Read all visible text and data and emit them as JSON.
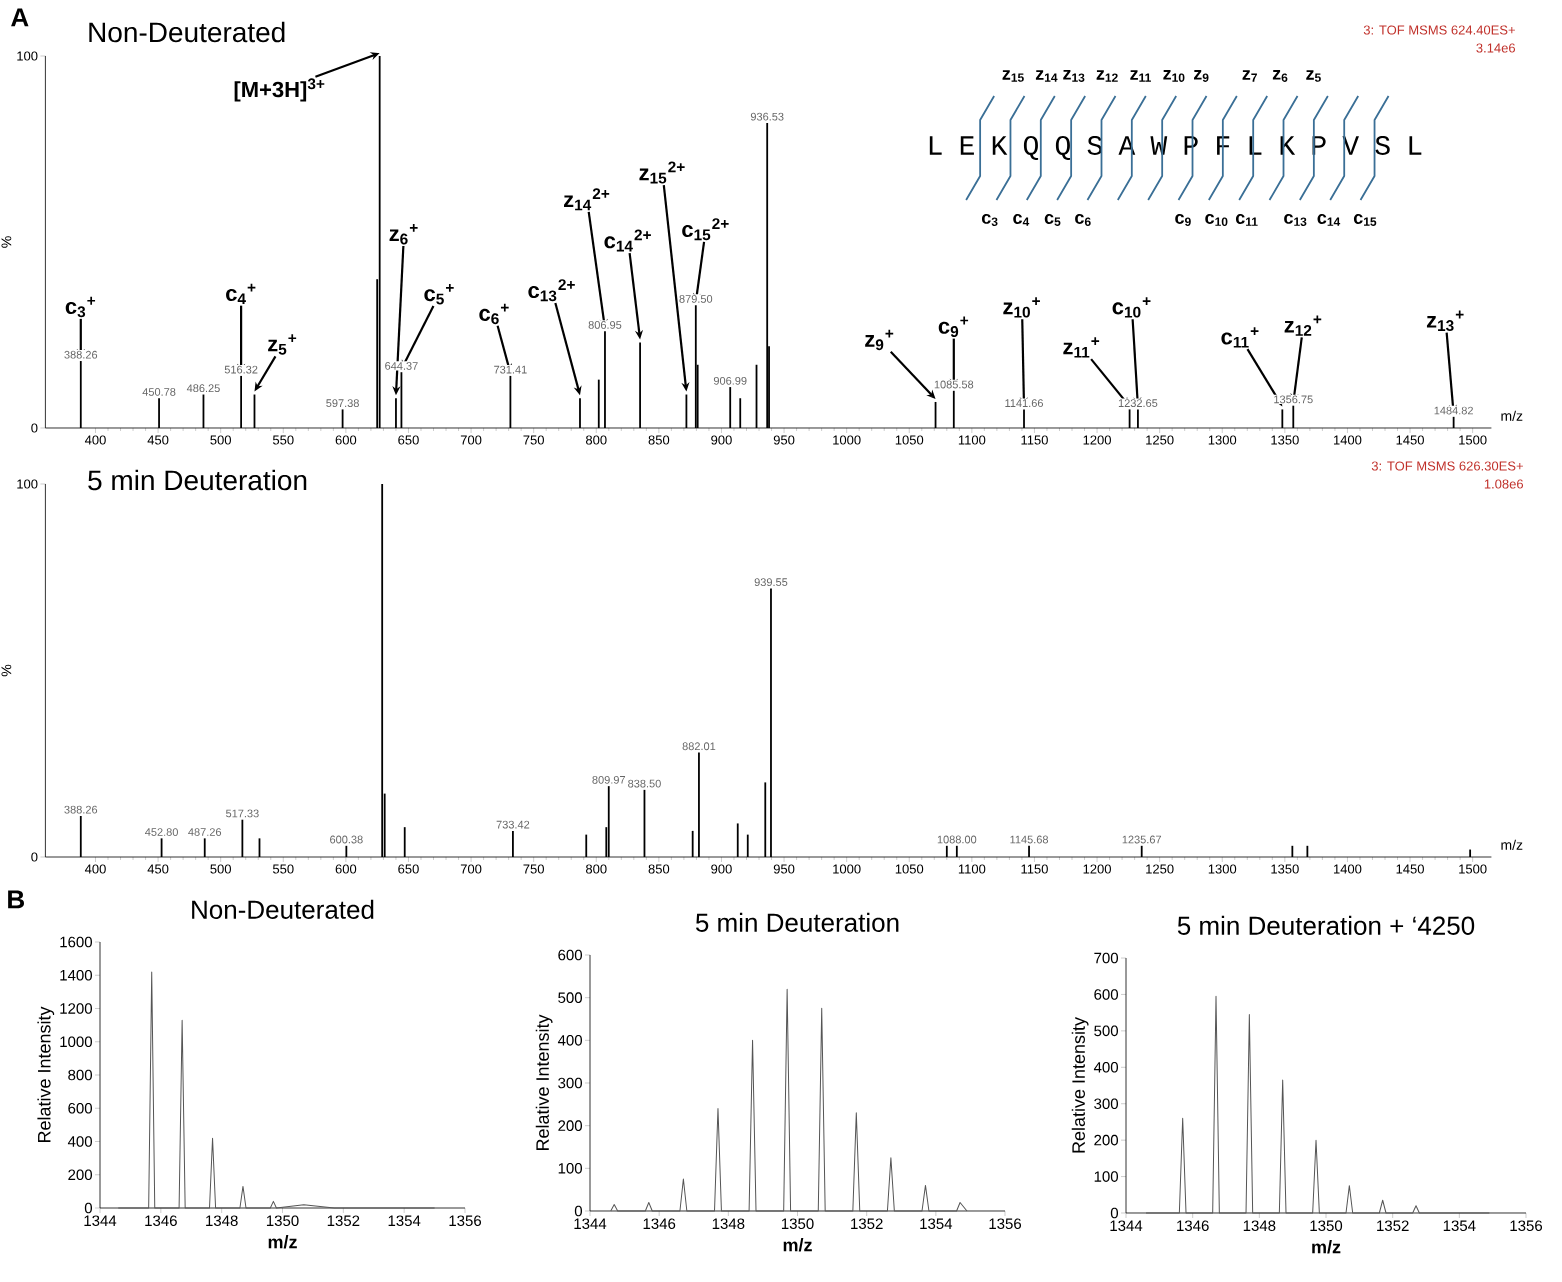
{
  "chart_data": [
    {
      "type": "bar",
      "title": "Non-Deuterated",
      "xlabel": "m/z",
      "ylabel": "%",
      "xlim": [
        360,
        1515
      ],
      "ylim": [
        0,
        100
      ],
      "xticks": [
        400,
        450,
        500,
        550,
        600,
        650,
        700,
        750,
        800,
        850,
        900,
        950,
        1000,
        1050,
        1100,
        1150,
        1200,
        1250,
        1300,
        1350,
        1400,
        1450,
        1500
      ],
      "yticks": [
        0,
        100
      ],
      "series": [
        {
          "color": "#000000",
          "x": [
            388.26,
            450.78,
            486.25,
            516.32,
            527,
            597.38,
            625,
            627,
            640,
            644.37,
            731.41,
            787,
            802,
            806.95,
            835,
            872,
            879.5,
            881,
            906.99,
            915,
            928,
            936.53,
            938,
            1071,
            1085.58,
            1141.66,
            1226,
            1232.65,
            1348,
            1356.75,
            1484.82
          ],
          "values": [
            18,
            8,
            9,
            14,
            9,
            5,
            40,
            100,
            8,
            15,
            14,
            8,
            13,
            26,
            23,
            9,
            33,
            17,
            11,
            8,
            17,
            82,
            22,
            7,
            10,
            5,
            5,
            5,
            5,
            6,
            3
          ]
        }
      ],
      "annotations": [
        "A",
        "3: TOF MSMS 624.40ES+",
        "3.14e6",
        "L E K Q Q S A W P F L K P V S L",
        "z$_{15}$",
        "z$_{14}$",
        "z$_{13}$",
        "z$_{12}$",
        "z$_{11}$",
        "z$_{10}$",
        "z$_{9}$",
        "z$_{7}$",
        "z$_{6}$",
        "z$_{5}$",
        "c$_{3}$",
        "c$_{4}$",
        "c$_{5}$",
        "c$_{6}$",
        "c$_{9}$",
        "c$_{10}$",
        "c$_{11}$",
        "c$_{13}$",
        "c$_{14}$",
        "c$_{15}$",
        {
          "text": "388.26",
          "x": 388.26,
          "y": 18
        },
        {
          "text": "450.78",
          "x": 450.78,
          "y": 8
        },
        {
          "text": "486.25",
          "x": 486.25,
          "y": 9
        },
        {
          "text": "516.32",
          "x": 516.32,
          "y": 14
        },
        {
          "text": "597.38",
          "x": 597.38,
          "y": 5
        },
        {
          "text": "644.37",
          "x": 644.37,
          "y": 15
        },
        {
          "text": "731.41",
          "x": 731.41,
          "y": 14
        },
        {
          "text": "806.95",
          "x": 806.95,
          "y": 26
        },
        {
          "text": "879.50",
          "x": 879.5,
          "y": 33
        },
        {
          "text": "906.99",
          "x": 906.99,
          "y": 11
        },
        {
          "text": "936.53",
          "x": 936.53,
          "y": 82
        },
        {
          "text": "1085.58",
          "x": 1085.58,
          "y": 10
        },
        {
          "text": "1141.66",
          "x": 1141.66,
          "y": 5
        },
        {
          "text": "1232.65",
          "x": 1232.65,
          "y": 5
        },
        {
          "text": "1356.75",
          "x": 1356.75,
          "y": 6
        },
        {
          "text": "1484.82",
          "x": 1484.82,
          "y": 3
        },
        {
          "text": "c$_{3}$$^{+}$",
          "x": 388.26,
          "y": 18
        },
        {
          "text": "c$_{4}$$^{+}$",
          "x": 516.32,
          "y": 14
        },
        {
          "text": "z$_{5}$$^{+}$",
          "x": 527,
          "y": 9
        },
        {
          "text": "[M+3H]$^{3+}$",
          "x": 627,
          "y": 100
        },
        {
          "text": "z$_{6}$$^{+}$",
          "x": 640,
          "y": 8
        },
        {
          "text": "c$_{5}$$^{+}$",
          "x": 644.37,
          "y": 15
        },
        {
          "text": "c$_{6}$$^{+}$",
          "x": 731.41,
          "y": 14
        },
        {
          "text": "c$_{13}$$^{2+}$",
          "x": 787,
          "y": 8
        },
        {
          "text": "z$_{14}$$^{2+}$",
          "x": 806.95,
          "y": 26
        },
        {
          "text": "c$_{14}$$^{2+}$",
          "x": 835,
          "y": 23
        },
        {
          "text": "z$_{15}$$^{2+}$",
          "x": 872,
          "y": 9
        },
        {
          "text": "c$_{15}$$^{2+}$",
          "x": 879.5,
          "y": 33
        },
        {
          "text": "z$_{9}$$^{+}$",
          "x": 1071,
          "y": 7
        },
        {
          "text": "c$_{9}$$^{+}$",
          "x": 1085.58,
          "y": 10
        },
        {
          "text": "z$_{10}$$^{+}$",
          "x": 1141.66,
          "y": 5
        },
        {
          "text": "z$_{11}$$^{+}$",
          "x": 1226,
          "y": 5
        },
        {
          "text": "c$_{10}$$^{+}$",
          "x": 1232.65,
          "y": 5
        },
        {
          "text": "c$_{11}$$^{+}$",
          "x": 1348,
          "y": 5
        },
        {
          "text": "z$_{12}$$^{+}$",
          "x": 1356.75,
          "y": 6
        },
        {
          "text": "z$_{13}$$^{+}$",
          "x": 1484.82,
          "y": 3
        }
      ]
    },
    {
      "type": "bar",
      "title": "5 min Deuteration",
      "xlabel": "m/z",
      "ylabel": "%",
      "xlim": [
        360,
        1515
      ],
      "ylim": [
        0,
        100
      ],
      "xticks": [
        400,
        450,
        500,
        550,
        600,
        650,
        700,
        750,
        800,
        850,
        900,
        950,
        1000,
        1050,
        1100,
        1150,
        1200,
        1250,
        1300,
        1350,
        1400,
        1450,
        1500
      ],
      "yticks": [
        0,
        100
      ],
      "series": [
        {
          "color": "#000000",
          "x": [
            388.26,
            452.8,
            487.26,
            517.33,
            531,
            600.38,
            629,
            631,
            647,
            733.42,
            792,
            808,
            809.97,
            838.5,
            877,
            882.01,
            913,
            921,
            935,
            939.55,
            1080,
            1088.0,
            1145.68,
            1235.67,
            1356,
            1368,
            1498
          ],
          "values": [
            11,
            5,
            5,
            10,
            5,
            3,
            100,
            17,
            8,
            7,
            6,
            8,
            19,
            18,
            7,
            28,
            9,
            6,
            20,
            72,
            3,
            3,
            3,
            3,
            3,
            3,
            2
          ]
        }
      ],
      "annotations": [
        "3: TOF MSMS 626.30ES+",
        "1.08e6",
        {
          "text": "388.26",
          "x": 388.26,
          "y": 11
        },
        {
          "text": "452.80",
          "x": 452.8,
          "y": 5
        },
        {
          "text": "487.26",
          "x": 487.26,
          "y": 5
        },
        {
          "text": "517.33",
          "x": 517.33,
          "y": 10
        },
        {
          "text": "600.38",
          "x": 600.38,
          "y": 3
        },
        {
          "text": "733.42",
          "x": 733.42,
          "y": 7
        },
        {
          "text": "809.97",
          "x": 809.97,
          "y": 19
        },
        {
          "text": "838.50",
          "x": 838.5,
          "y": 18
        },
        {
          "text": "882.01",
          "x": 882.01,
          "y": 28
        },
        {
          "text": "939.55",
          "x": 939.55,
          "y": 72
        },
        {
          "text": "1088.00",
          "x": 1088.0,
          "y": 3
        },
        {
          "text": "1145.68",
          "x": 1145.68,
          "y": 3
        },
        {
          "text": "1235.67",
          "x": 1235.67,
          "y": 3
        }
      ]
    },
    {
      "type": "line",
      "title": "Non-Deuterated",
      "xlabel": "m/z",
      "ylabel": "Relative Intensity",
      "xlim": [
        1344,
        1356
      ],
      "ylim": [
        0,
        1600
      ],
      "xticks": [
        1344,
        1346,
        1348,
        1350,
        1352,
        1354,
        1356
      ],
      "yticks": [
        0,
        200,
        400,
        600,
        800,
        1000,
        1200,
        1400,
        1600
      ],
      "series": [
        {
          "color": "#555555",
          "x": [
            1344.6,
            1345.6,
            1345.7,
            1345.8,
            1346.6,
            1346.7,
            1346.8,
            1347.6,
            1347.7,
            1347.8,
            1348.6,
            1348.7,
            1348.8,
            1349.6,
            1349.7,
            1349.8,
            1350.7,
            1351.7,
            1355.0
          ],
          "values": [
            0,
            0,
            1420,
            0,
            0,
            1130,
            0,
            0,
            420,
            0,
            0,
            130,
            0,
            0,
            40,
            0,
            20,
            0,
            0
          ]
        }
      ],
      "annotations": [
        "B"
      ]
    },
    {
      "type": "line",
      "title": "5 min Deuteration",
      "xlabel": "m/z",
      "ylabel": "Relative Intensity",
      "xlim": [
        1344,
        1356
      ],
      "ylim": [
        0,
        600
      ],
      "xticks": [
        1344,
        1346,
        1348,
        1350,
        1352,
        1354,
        1356
      ],
      "yticks": [
        0,
        100,
        200,
        300,
        400,
        500,
        600
      ],
      "series": [
        {
          "color": "#555555",
          "x": [
            1344.6,
            1344.7,
            1344.8,
            1345.6,
            1345.7,
            1345.8,
            1346.6,
            1346.7,
            1346.8,
            1347.6,
            1347.7,
            1347.8,
            1348.6,
            1348.7,
            1348.8,
            1349.6,
            1349.7,
            1349.8,
            1350.6,
            1350.7,
            1350.8,
            1351.6,
            1351.7,
            1351.8,
            1352.6,
            1352.7,
            1352.8,
            1353.6,
            1353.7,
            1353.8,
            1354.6,
            1354.7,
            1354.9
          ],
          "values": [
            0,
            15,
            0,
            0,
            20,
            0,
            0,
            75,
            0,
            0,
            240,
            0,
            0,
            400,
            0,
            0,
            520,
            0,
            0,
            475,
            0,
            0,
            230,
            0,
            0,
            125,
            0,
            0,
            60,
            0,
            0,
            20,
            0
          ]
        }
      ]
    },
    {
      "type": "line",
      "title": "5 min Deuteration + ‘4250",
      "xlabel": "m/z",
      "ylabel": "Relative Intensity",
      "xlim": [
        1344,
        1356
      ],
      "ylim": [
        0,
        700
      ],
      "xticks": [
        1344,
        1346,
        1348,
        1350,
        1352,
        1354,
        1356
      ],
      "yticks": [
        0,
        100,
        200,
        300,
        400,
        500,
        600,
        700
      ],
      "series": [
        {
          "color": "#555555",
          "x": [
            1344.6,
            1345.6,
            1345.7,
            1345.8,
            1346.6,
            1346.7,
            1346.8,
            1347.6,
            1347.7,
            1347.8,
            1348.6,
            1348.7,
            1348.8,
            1349.6,
            1349.7,
            1349.8,
            1350.6,
            1350.7,
            1350.8,
            1351.6,
            1351.7,
            1351.8,
            1352.6,
            1352.7,
            1352.8,
            1354.9
          ],
          "values": [
            0,
            0,
            260,
            0,
            0,
            595,
            0,
            0,
            545,
            0,
            0,
            365,
            0,
            0,
            200,
            0,
            0,
            75,
            0,
            0,
            35,
            0,
            0,
            20,
            0,
            0
          ]
        }
      ]
    }
  ]
}
